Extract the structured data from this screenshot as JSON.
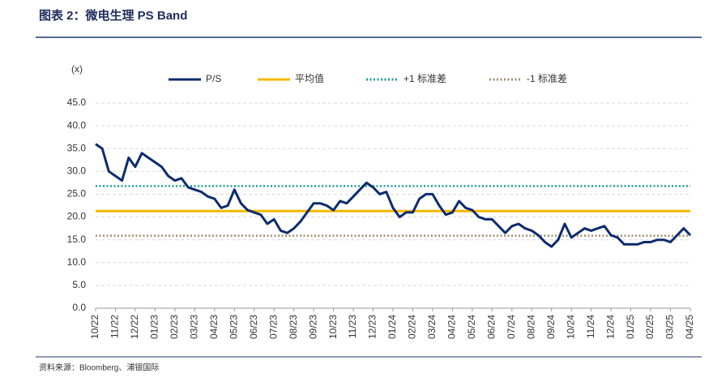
{
  "chart_data": {
    "type": "line",
    "title": "图表 2：微电生理 PS Band",
    "y_label": "(x)",
    "source": "资料来源：Bloomberg、浦银国际",
    "categories": [
      "10/22",
      null,
      null,
      "11/22",
      null,
      null,
      "12/22",
      null,
      null,
      "01/23",
      null,
      null,
      "02/23",
      null,
      null,
      "03/23",
      null,
      null,
      "04/23",
      null,
      null,
      "05/23",
      null,
      null,
      "06/23",
      null,
      null,
      "07/23",
      null,
      null,
      "08/23",
      null,
      null,
      "09/23",
      null,
      null,
      "10/23",
      null,
      null,
      "11/23",
      null,
      null,
      "12/23",
      null,
      null,
      "01/24",
      null,
      null,
      "02/24",
      null,
      null,
      "03/24",
      null,
      null,
      "04/24",
      null,
      null,
      "05/24",
      null,
      null,
      "06/24",
      null,
      null,
      "07/24",
      null,
      null,
      "08/24",
      null,
      null,
      "09/24",
      null,
      null,
      "10/24",
      null,
      null,
      "11/24",
      null,
      null,
      "12/24",
      null,
      null,
      "01/25",
      null,
      null,
      "02/25",
      null,
      null,
      "03/25",
      null,
      null,
      "04/25"
    ],
    "series": [
      {
        "name": "P/S",
        "color": "#0d2b6e",
        "values": [
          36,
          35,
          30,
          29,
          28,
          33,
          31,
          34,
          33,
          32,
          31,
          29,
          28,
          28.5,
          26.5,
          26,
          25.5,
          24.5,
          24,
          22,
          22.5,
          26,
          23,
          21.5,
          21,
          20.5,
          18.5,
          19.5,
          17,
          16.5,
          17.5,
          19,
          21,
          23,
          23,
          22.5,
          21.5,
          23.5,
          23,
          24.5,
          26,
          27.5,
          26.5,
          25,
          25.5,
          22,
          20,
          21,
          21,
          24,
          25,
          25,
          22.5,
          20.5,
          21,
          23.5,
          22,
          21.5,
          20,
          19.5,
          19.5,
          18,
          16.5,
          18,
          18.5,
          17.5,
          17,
          16,
          14.5,
          13.5,
          15,
          18.5,
          15.5,
          16.5,
          17.5,
          17,
          17.5,
          18,
          16,
          15.5,
          14,
          14,
          14,
          14.5,
          14.5,
          15,
          15,
          14.5,
          16,
          17.5,
          16
        ]
      }
    ],
    "reference_lines": [
      {
        "name": "平均值",
        "color": "#f5b800",
        "value": 21.3,
        "style": "solid"
      },
      {
        "name": "+1 标准差",
        "color": "#1a9e9e",
        "value": 26.8,
        "style": "dotted"
      },
      {
        "name": "-1 标准差",
        "color": "#9c8f6a",
        "value": 15.9,
        "style": "dotted"
      }
    ],
    "ylim": [
      0,
      45
    ],
    "yticks": [
      {
        "value": 0,
        "label": "0.0"
      },
      {
        "value": 5,
        "label": "5.0"
      },
      {
        "value": 10,
        "label": "10.0"
      },
      {
        "value": 15,
        "label": "15.0"
      },
      {
        "value": 20,
        "label": "20.0"
      },
      {
        "value": 25,
        "label": "25.0"
      },
      {
        "value": 30,
        "label": "30.0"
      },
      {
        "value": 35,
        "label": "35.0"
      },
      {
        "value": 40,
        "label": "40.0"
      },
      {
        "value": 45,
        "label": "45.0"
      }
    ],
    "grid": true
  }
}
